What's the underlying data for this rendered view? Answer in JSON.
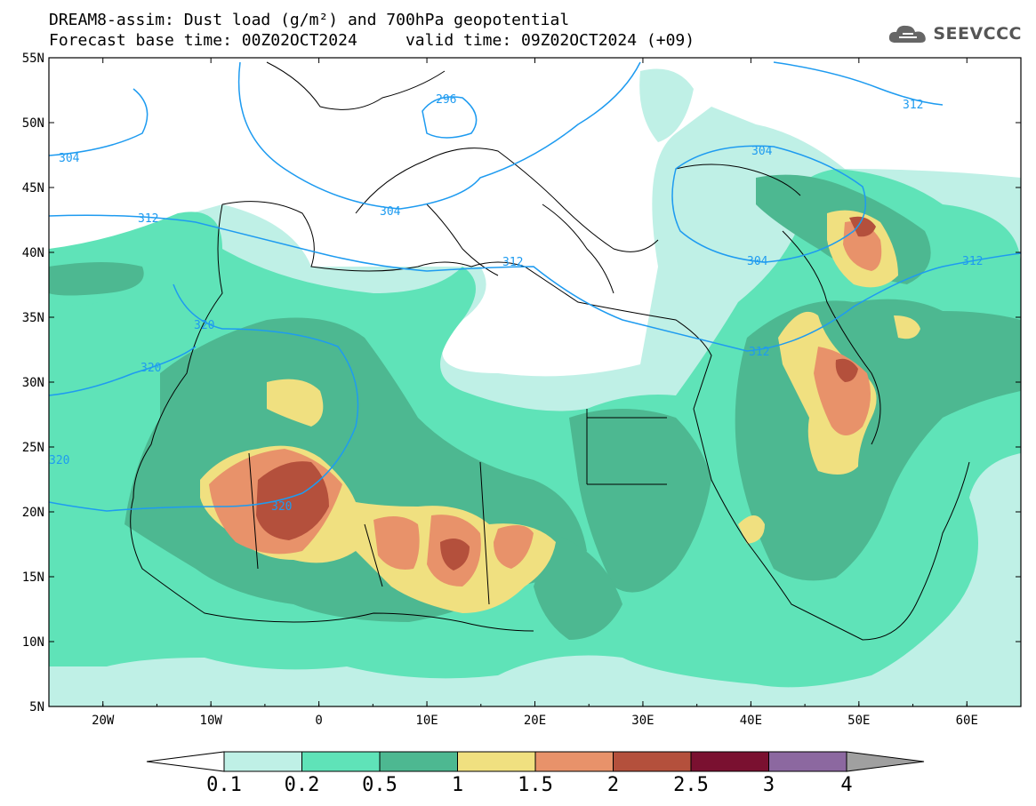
{
  "title": {
    "line1": "DREAM8-assim: Dust load (g/m²) and 700hPa geopotential",
    "line2": "Forecast base time: 00Z02OCT2024     valid time: 09Z02OCT2024 (+09)"
  },
  "logo": {
    "text": "SEEVCCC",
    "icon": "cloud-icon"
  },
  "map": {
    "lon_range": [
      -25,
      65
    ],
    "lat_range": [
      5,
      55
    ],
    "lat_ticks": [
      "55N",
      "50N",
      "45N",
      "40N",
      "35N",
      "30N",
      "25N",
      "20N",
      "15N",
      "10N",
      "5N"
    ],
    "lon_ticks": [
      "20W",
      "10W",
      "0",
      "10E",
      "20E",
      "30E",
      "40E",
      "50E",
      "60E"
    ],
    "contour_labels": [
      "296",
      "304",
      "304",
      "304",
      "312",
      "312",
      "312",
      "312",
      "312",
      "320",
      "320",
      "320",
      "320",
      "304"
    ]
  },
  "colorbar": {
    "labels": [
      "0.1",
      "0.2",
      "0.5",
      "1",
      "1.5",
      "2",
      "2.5",
      "3",
      "4"
    ],
    "colors": [
      "#ffffff",
      "#bff0e6",
      "#5fe3b8",
      "#4db891",
      "#f0e080",
      "#e8926a",
      "#b4503c",
      "#7a1030",
      "#8c68a0",
      "#a0a0a0"
    ]
  }
}
